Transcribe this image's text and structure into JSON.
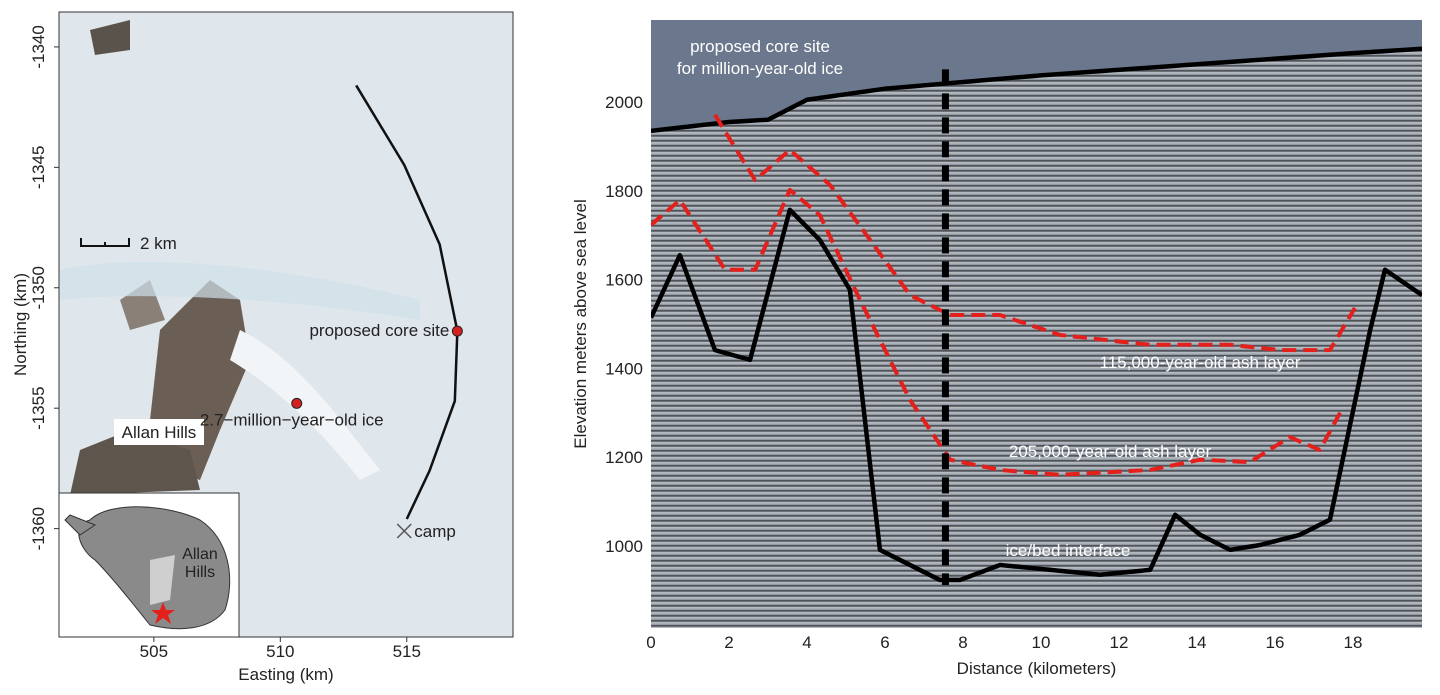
{
  "chart_data": [
    {
      "type": "map",
      "xlabel": "Easting (km)",
      "ylabel": "Northing (km)",
      "xlim": [
        501.25,
        519.2
      ],
      "ylim": [
        -1364.5,
        -1338.55
      ],
      "xticks": [
        505,
        510,
        515
      ],
      "yticks": [
        -1360,
        -1355,
        -1350,
        -1345,
        -1340
      ],
      "track": {
        "color": "#111111",
        "x": [
          513.0,
          514.9,
          516.3,
          517.0,
          516.9,
          515.9,
          515.0
        ],
        "y": [
          -1341.6,
          -1344.9,
          -1348.2,
          -1351.8,
          -1354.7,
          -1357.6,
          -1359.6
        ]
      },
      "points": [
        {
          "name": "proposed core site",
          "x": 517.0,
          "y": -1351.8,
          "color": "#d62020",
          "marker": "circle"
        },
        {
          "name": "2.7−million−year−old ice",
          "x": 510.65,
          "y": -1354.8,
          "color": "#d62020",
          "marker": "circle"
        },
        {
          "name": "camp",
          "x": 514.9,
          "y": -1360.1,
          "color": "#555555",
          "marker": "x"
        }
      ],
      "annotations": [
        "Allan Hills",
        "2 km"
      ],
      "inset_label": "Allan Hills"
    },
    {
      "type": "line",
      "xlabel": "Distance (kilometers)",
      "ylabel": "Elevation meters above sea level",
      "xlim": [
        0,
        19.77
      ],
      "ylim": [
        815,
        2184.7
      ],
      "xticks": [
        0,
        2,
        4,
        6,
        8,
        10,
        12,
        14,
        16,
        18
      ],
      "yticks": [
        1000,
        1200,
        1400,
        1600,
        1800,
        2000
      ],
      "core_site_x": 7.55,
      "core_site_label": [
        "proposed core site",
        "for million-year-old ice"
      ],
      "series": [
        {
          "color": "#000000",
          "dash": false,
          "x": [
            0,
            2,
            3,
            4,
            6,
            10,
            14,
            18,
            19.77
          ],
          "values": [
            1935,
            1955,
            1960,
            2005,
            2030,
            2060,
            2085,
            2110,
            2120
          ]
        },
        {
          "name": "115,000-year-old ash layer",
          "color": "#e3201b",
          "dash": true,
          "x": [
            1.64,
            2.67,
            3.56,
            4.59,
            5.62,
            6.64,
            7.67,
            8.95,
            10.49,
            12.8,
            14.85,
            16.13,
            17.41,
            18.05
          ],
          "values": [
            1971,
            1824,
            1892,
            1813,
            1689,
            1565,
            1520,
            1520,
            1475,
            1453,
            1453,
            1441,
            1441,
            1536
          ]
        },
        {
          "name": "205,000-year-old ash layer",
          "color": "#e3201b",
          "dash": true,
          "x": [
            0,
            0.74,
            1.9,
            2.67,
            3.56,
            4.33,
            5.36,
            6.64,
            7.67,
            8.95,
            10.49,
            12.8,
            14.08,
            15.36,
            16.38,
            17.15,
            17.67
          ],
          "values": [
            1723,
            1779,
            1622,
            1622,
            1802,
            1745,
            1554,
            1329,
            1194,
            1171,
            1160,
            1171,
            1194,
            1189,
            1245,
            1216,
            1300
          ]
        },
        {
          "name": "ice/bed interface",
          "color": "#000000",
          "dash": false,
          "x": [
            0,
            0.74,
            1.64,
            2.54,
            3.56,
            4.33,
            5.1,
            5.87,
            7.41,
            7.92,
            8.95,
            11.51,
            12.8,
            13.44,
            14.08,
            14.85,
            15.62,
            16.64,
            17.41,
            18.44,
            18.82,
            19.77
          ],
          "values": [
            1514,
            1655,
            1441,
            1419,
            1757,
            1689,
            1577,
            991,
            923,
            923,
            957,
            935,
            946,
            1070,
            1025,
            991,
            1002,
            1025,
            1059,
            1486,
            1622,
            1565
          ]
        }
      ]
    }
  ]
}
